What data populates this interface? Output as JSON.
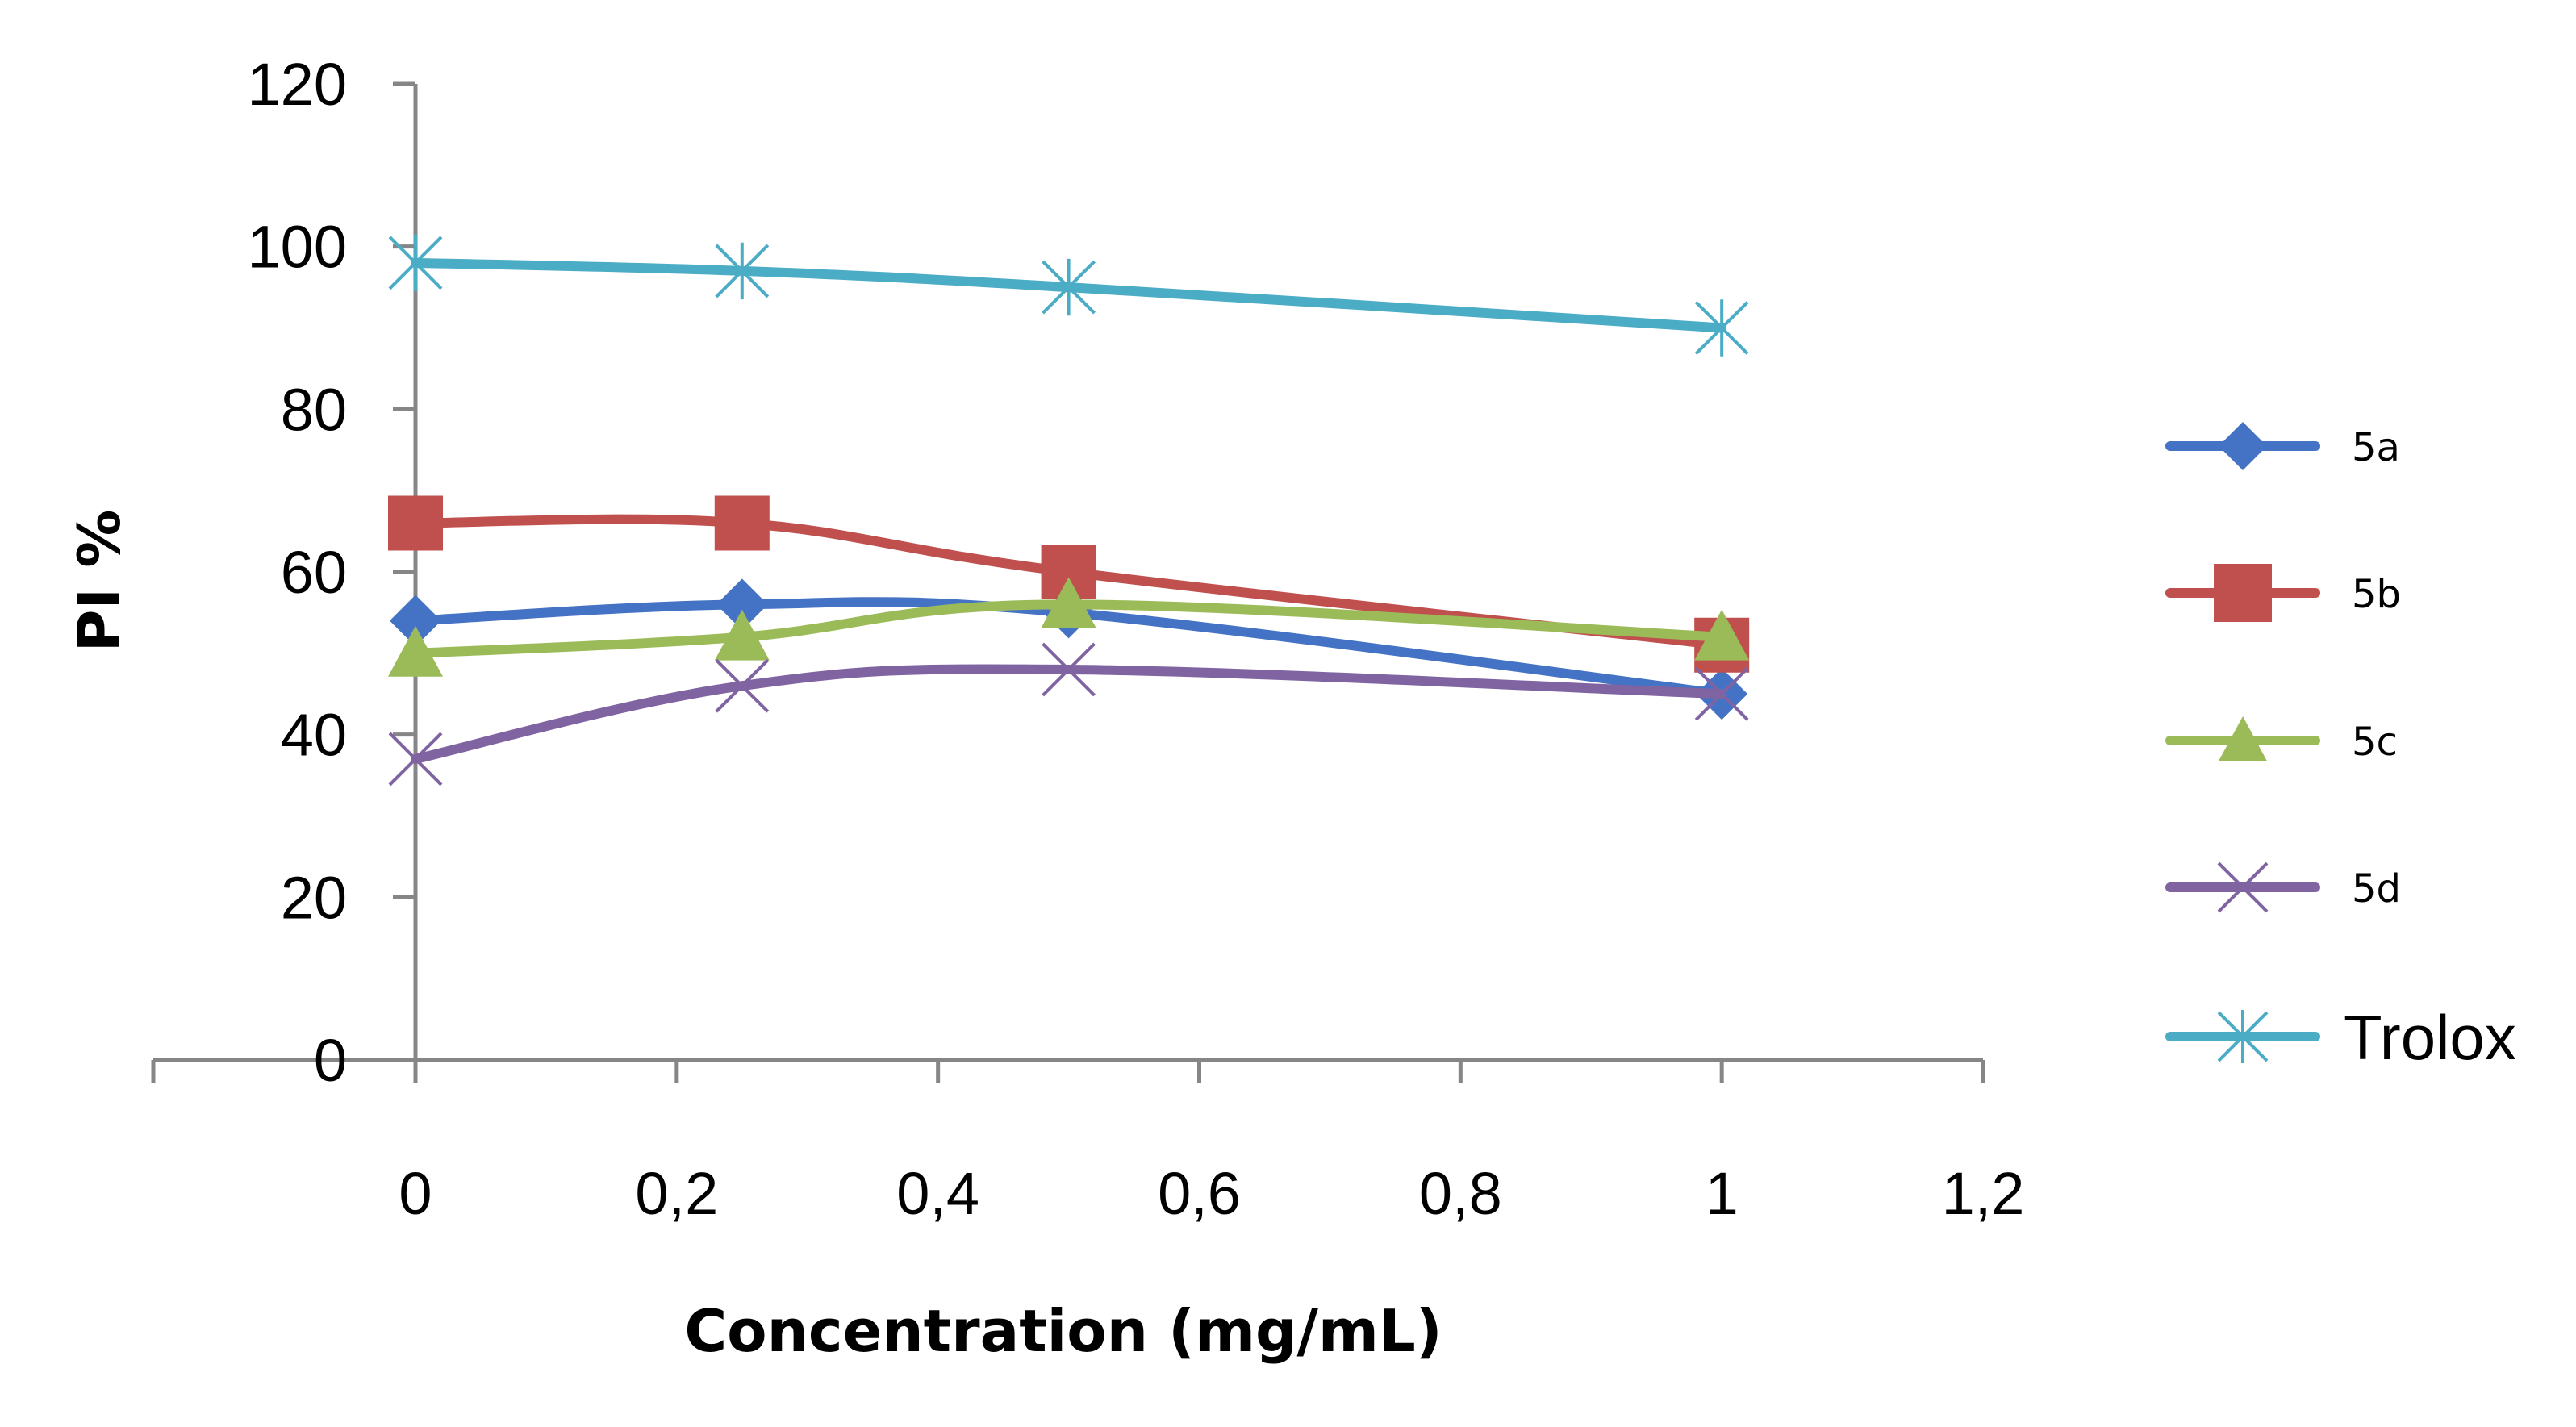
{
  "chart_data": {
    "type": "line",
    "xlabel": "Concentration (mg/mL)",
    "ylabel": "PI %",
    "xlim": [
      0,
      1.2
    ],
    "ylim": [
      0,
      120
    ],
    "x_ticks": [
      "0",
      "0,2",
      "0,4",
      "0,6",
      "0,8",
      "1",
      "1,2"
    ],
    "y_ticks": [
      "0",
      "20",
      "40",
      "60",
      "80",
      "100",
      "120"
    ],
    "legend_position": "right",
    "grid": false,
    "x": [
      0,
      0.25,
      0.5,
      1
    ],
    "series": [
      {
        "name": "5a",
        "values": [
          54,
          56,
          55,
          45
        ],
        "color": "#4472C4",
        "marker": "diamond"
      },
      {
        "name": "5b",
        "values": [
          66,
          66,
          60,
          51
        ],
        "color": "#C0504D",
        "marker": "square"
      },
      {
        "name": "5c",
        "values": [
          50,
          52,
          56,
          52
        ],
        "color": "#9BBB59",
        "marker": "triangle"
      },
      {
        "name": "5d",
        "values": [
          37,
          46,
          48,
          45
        ],
        "color": "#8064A2",
        "marker": "x"
      },
      {
        "name": "Trolox",
        "values": [
          98,
          97,
          95,
          90
        ],
        "color": "#4BACC6",
        "marker": "asterisk"
      }
    ]
  }
}
